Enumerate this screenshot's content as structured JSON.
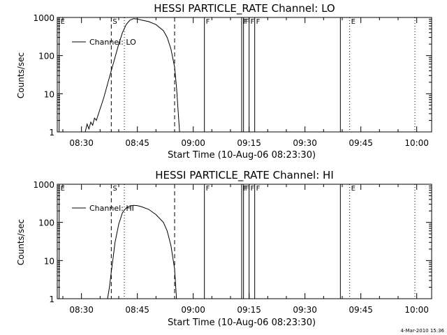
{
  "footer_timestamp": "4-Mar-2010 15:36",
  "chart_data": [
    {
      "type": "line",
      "title": "HESSI PARTICLE_RATE Channel: LO",
      "xlabel": "Start Time (10-Aug-06 08:23:30)",
      "ylabel": "Counts/sec",
      "y_scale": "log",
      "ylim": [
        1,
        1000
      ],
      "xlim": [
        "08:23:30",
        "10:04:00"
      ],
      "x_ticks": [
        "08:30",
        "08:45",
        "09:00",
        "09:15",
        "09:30",
        "09:45",
        "10:00"
      ],
      "y_ticks": [
        "1",
        "10",
        "100",
        "1000"
      ],
      "legend": {
        "position": "top-left",
        "entries": [
          "Channel: LO"
        ]
      },
      "markers": [
        {
          "label": "E",
          "time": "08:24:00",
          "style": "solid"
        },
        {
          "label": "S",
          "time": "08:38:00",
          "style": "dashed"
        },
        {
          "label": "",
          "time": "08:41:30",
          "style": "dotted"
        },
        {
          "label": "",
          "time": "08:55:00",
          "style": "dashed"
        },
        {
          "label": "F",
          "time": "09:03:00",
          "style": "solid"
        },
        {
          "label": "F",
          "time": "09:13:00",
          "style": "solid"
        },
        {
          "label": "F",
          "time": "09:13:30",
          "style": "solid"
        },
        {
          "label": "F",
          "time": "09:15:00",
          "style": "solid"
        },
        {
          "label": "F",
          "time": "09:16:30",
          "style": "solid"
        },
        {
          "label": "",
          "time": "09:39:30",
          "style": "solid"
        },
        {
          "label": "E",
          "time": "09:42:00",
          "style": "dotted"
        },
        {
          "label": "",
          "time": "09:59:30",
          "style": "dotted"
        }
      ],
      "series": [
        {
          "name": "Channel: LO",
          "points": [
            [
              "08:31:00",
              1
            ],
            [
              "08:31:30",
              1.6
            ],
            [
              "08:32:00",
              1.2
            ],
            [
              "08:32:30",
              1.8
            ],
            [
              "08:33:00",
              1.5
            ],
            [
              "08:33:30",
              2.3
            ],
            [
              "08:34:00",
              2.0
            ],
            [
              "08:35:00",
              4
            ],
            [
              "08:36:00",
              8
            ],
            [
              "08:37:00",
              18
            ],
            [
              "08:38:00",
              40
            ],
            [
              "08:39:00",
              90
            ],
            [
              "08:40:00",
              200
            ],
            [
              "08:41:00",
              400
            ],
            [
              "08:42:00",
              650
            ],
            [
              "08:43:00",
              850
            ],
            [
              "08:44:00",
              930
            ],
            [
              "08:45:00",
              910
            ],
            [
              "08:46:00",
              860
            ],
            [
              "08:48:00",
              780
            ],
            [
              "08:50:00",
              650
            ],
            [
              "08:52:00",
              450
            ],
            [
              "08:53:00",
              300
            ],
            [
              "08:54:00",
              150
            ],
            [
              "08:55:00",
              50
            ],
            [
              "08:55:30",
              15
            ],
            [
              "08:56:00",
              3
            ],
            [
              "08:56:20",
              1
            ]
          ]
        }
      ]
    },
    {
      "type": "line",
      "title": "HESSI PARTICLE_RATE Channel: HI",
      "xlabel": "Start Time (10-Aug-06 08:23:30)",
      "ylabel": "Counts/sec",
      "y_scale": "log",
      "ylim": [
        1,
        1000
      ],
      "xlim": [
        "08:23:30",
        "10:04:00"
      ],
      "x_ticks": [
        "08:30",
        "08:45",
        "09:00",
        "09:15",
        "09:30",
        "09:45",
        "10:00"
      ],
      "y_ticks": [
        "1",
        "10",
        "100",
        "1000"
      ],
      "legend": {
        "position": "top-left",
        "entries": [
          "Channel: HI"
        ]
      },
      "markers": [
        {
          "label": "E",
          "time": "08:24:00",
          "style": "solid"
        },
        {
          "label": "S",
          "time": "08:38:00",
          "style": "dashed"
        },
        {
          "label": "",
          "time": "08:41:30",
          "style": "dotted"
        },
        {
          "label": "",
          "time": "08:55:00",
          "style": "dashed"
        },
        {
          "label": "F",
          "time": "09:03:00",
          "style": "solid"
        },
        {
          "label": "F",
          "time": "09:13:00",
          "style": "solid"
        },
        {
          "label": "F",
          "time": "09:13:30",
          "style": "solid"
        },
        {
          "label": "F",
          "time": "09:15:00",
          "style": "solid"
        },
        {
          "label": "F",
          "time": "09:16:30",
          "style": "solid"
        },
        {
          "label": "",
          "time": "09:39:30",
          "style": "solid"
        },
        {
          "label": "E",
          "time": "09:42:00",
          "style": "dotted"
        },
        {
          "label": "",
          "time": "09:59:30",
          "style": "dotted"
        }
      ],
      "series": [
        {
          "name": "Channel: HI",
          "points": [
            [
              "08:37:00",
              1
            ],
            [
              "08:37:30",
              2
            ],
            [
              "08:38:00",
              5
            ],
            [
              "08:38:30",
              12
            ],
            [
              "08:39:00",
              30
            ],
            [
              "08:40:00",
              90
            ],
            [
              "08:41:00",
              180
            ],
            [
              "08:42:00",
              240
            ],
            [
              "08:43:00",
              270
            ],
            [
              "08:44:00",
              280
            ],
            [
              "08:45:00",
              275
            ],
            [
              "08:46:00",
              260
            ],
            [
              "08:48:00",
              220
            ],
            [
              "08:50:00",
              160
            ],
            [
              "08:52:00",
              100
            ],
            [
              "08:53:00",
              60
            ],
            [
              "08:54:00",
              25
            ],
            [
              "08:55:00",
              6
            ],
            [
              "08:55:30",
              1
            ]
          ]
        }
      ]
    }
  ]
}
